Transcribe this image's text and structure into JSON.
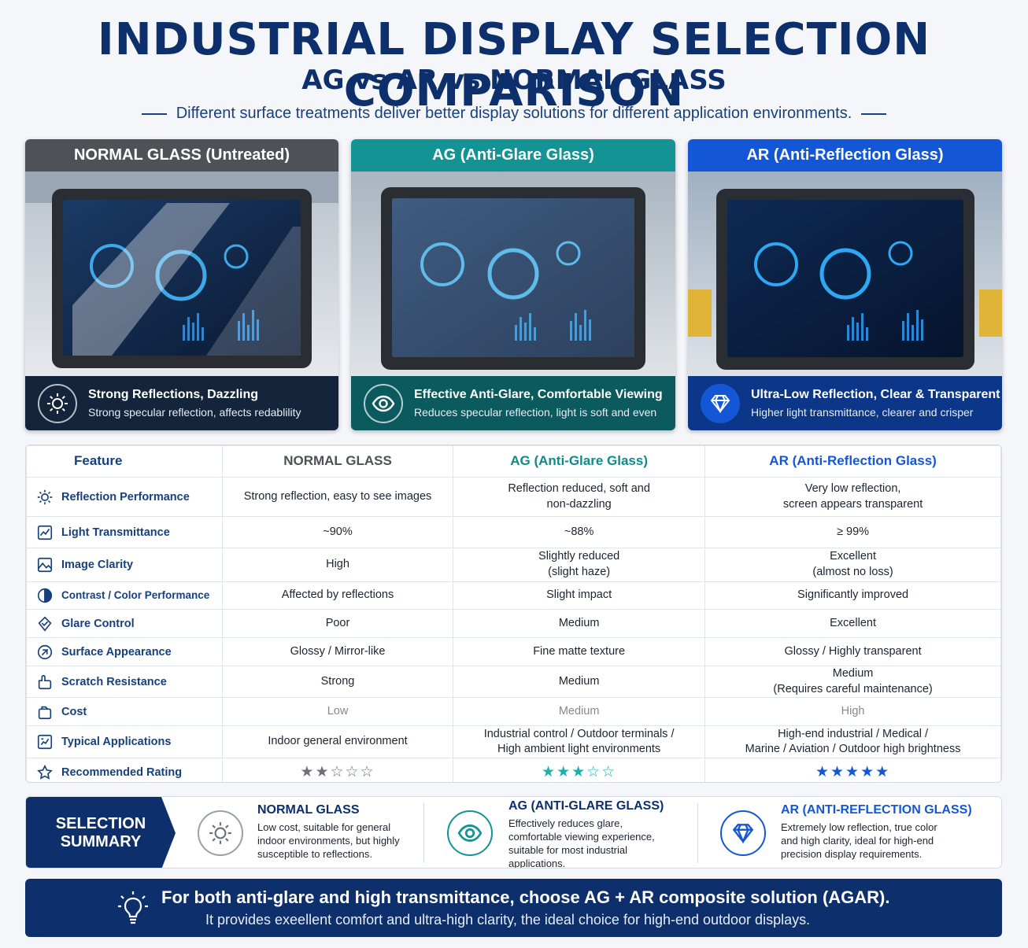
{
  "header": {
    "title": "INDUSTRIAL DISPLAY SELECTION COMPARISON",
    "subtitle": "AG vs AR vs NORMAL GLASS",
    "tagline": "Different surface treatments deliver better display solutions for different application environments."
  },
  "cards": [
    {
      "header": "NORMAL GLASS (Untreated)",
      "icon": "sun-icon",
      "title": "Strong Reflections, Dazzling",
      "desc": "Strong specular reflection, affects redablility"
    },
    {
      "header": "AG (Anti-Glare Glass)",
      "icon": "eye-icon",
      "title": "Effective Anti-Glare, Comfortable Viewing",
      "desc": "Reduces specular reflection, light is soft and even"
    },
    {
      "header": "AR (Anti-Reflection Glass)",
      "icon": "diamond-icon",
      "title": "Ultra-Low Reflection, Clear & Transparent",
      "desc": "Higher light transmittance, clearer and crisper"
    }
  ],
  "table": {
    "headers": [
      "Feature",
      "NORMAL GLASS",
      "AG (Anti-Glare Glass)",
      "AR (Anti-Reflection Glass)"
    ],
    "rows": [
      {
        "feature": "Reflection Performance",
        "icon": "sun-icon",
        "normal": "Strong reflection, easy to see images",
        "ag": "Reflection reduced, soft and\nnon-dazzling",
        "ar": "Very low reflection,\nscreen appears transparent"
      },
      {
        "feature": "Light Transmittance",
        "icon": "chart-icon",
        "normal": "~90%",
        "ag": "~88%",
        "ar": "≥ 99%"
      },
      {
        "feature": "Image Clarity",
        "icon": "image-icon",
        "normal": "High",
        "ag": "Slightly reduced\n(slight haze)",
        "ar": "Excellent\n(almost no loss)"
      },
      {
        "feature": "Contrast / Color Performance",
        "icon": "contrast-icon",
        "normal": "Affected by reflections",
        "ag": "Slight impact",
        "ar": "Significantly improved"
      },
      {
        "feature": "Glare Control",
        "icon": "shield-icon",
        "normal": "Poor",
        "ag": "Medium",
        "ar": "Excellent"
      },
      {
        "feature": "Surface Appearance",
        "icon": "surface-icon",
        "normal": "Glossy / Mirror-like",
        "ag": "Fine matte texture",
        "ar": "Glossy / Highly transparent"
      },
      {
        "feature": "Scratch Resistance",
        "icon": "hand-icon",
        "normal": "Strong",
        "ag": "Medium",
        "ar": "Medium\n(Requires careful maintenance)"
      },
      {
        "feature": "Cost",
        "icon": "box-icon",
        "normal": "Low",
        "ag": "Medium",
        "ar": "High"
      },
      {
        "feature": "Typical Applications",
        "icon": "apps-icon",
        "normal": "Indoor general environment",
        "ag": "Industrial control / Outdoor terminals /\nHigh ambient light environments",
        "ar": "High-end industrial / Medical /\nMarine / Aviation / Outdoor high brightness"
      },
      {
        "feature": "Recommended Rating",
        "icon": "star-icon",
        "normal": "★★☆☆☆",
        "ag": "★★★☆☆",
        "ar": "★★★★★"
      }
    ],
    "ratings": {
      "normal": 2,
      "ag": 3,
      "ar": 5,
      "max": 5
    }
  },
  "summary": {
    "label": "SELECTION SUMMARY",
    "items": [
      {
        "title": "NORMAL GLASS",
        "icon": "sun-icon",
        "desc": "Low cost, suitable for general indoor environments, but highly susceptible to reflections."
      },
      {
        "title": "AG (ANTI-GLARE GLASS)",
        "icon": "eye-icon",
        "desc": "Effectively reduces glare, comfortable viewing experience, suitable for most industrial applications."
      },
      {
        "title": "AR (ANTI-REFLECTION GLASS)",
        "icon": "diamond-icon",
        "desc": "Extremely low reflection, true color and high clarity, ideal for high-end precision display requirements."
      }
    ]
  },
  "banner": {
    "icon": "lightbulb-icon",
    "line1": "For both anti-glare and high transmittance, choose AG + AR composite solution (AGAR).",
    "line2": "It provides exeellent comfort and ultra-high clarity, the ideal choice for high-end outdoor displays."
  },
  "colors": {
    "navy": "#0d2f6b",
    "normal_header": "#4e5257",
    "ag_header": "#139393",
    "ar_header": "#1457d6",
    "ag_text": "#0e8a8a",
    "ar_text": "#1457d6"
  }
}
